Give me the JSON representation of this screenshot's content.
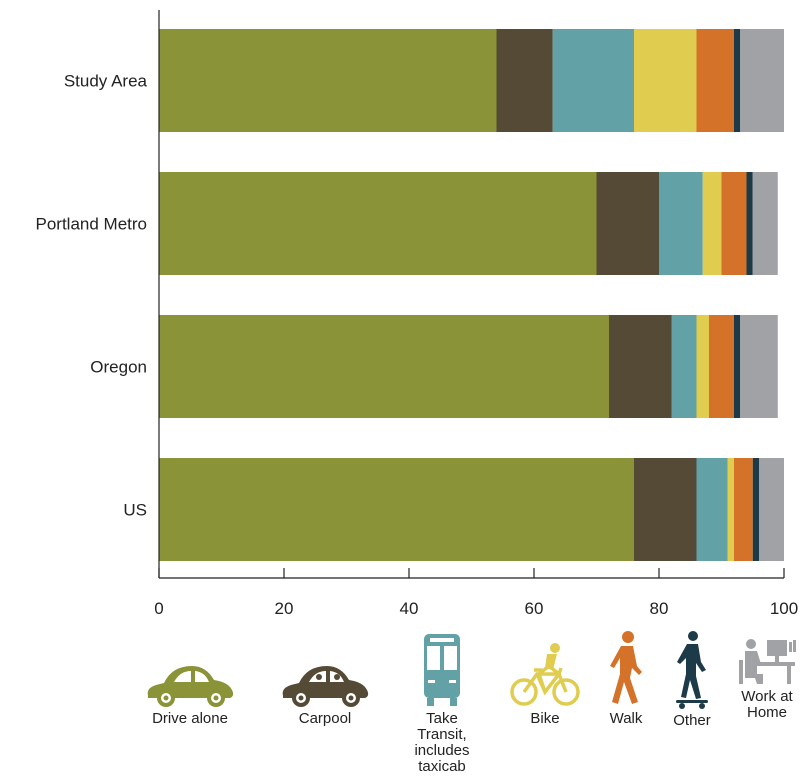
{
  "colors": {
    "drive_alone": "#8b9338",
    "carpool": "#554a36",
    "transit": "#62a1a6",
    "bike": "#e0cc4f",
    "walk": "#d4722a",
    "other": "#1c3a48",
    "work_at_home": "#a1a2a6"
  },
  "chart_data": {
    "type": "bar",
    "orientation": "horizontal",
    "stacked": true,
    "categories": [
      "Study Area",
      "Portland Metro",
      "Oregon",
      "US"
    ],
    "series": [
      {
        "name": "Drive alone",
        "values": [
          54,
          70,
          72,
          76
        ]
      },
      {
        "name": "Carpool",
        "values": [
          9,
          10,
          10,
          10
        ]
      },
      {
        "name": "Take Transit, includes taxicab",
        "values": [
          13,
          7,
          4,
          5
        ]
      },
      {
        "name": "Bike",
        "values": [
          10,
          3,
          2,
          1
        ]
      },
      {
        "name": "Walk",
        "values": [
          6,
          4,
          4,
          3
        ]
      },
      {
        "name": "Other",
        "values": [
          1,
          1,
          1,
          1
        ]
      },
      {
        "name": "Work at Home",
        "values": [
          7,
          4,
          6,
          4
        ]
      }
    ],
    "xlim": [
      0,
      100
    ],
    "xticks": [
      "0",
      "20",
      "40",
      "60",
      "80",
      "100"
    ],
    "title": "",
    "xlabel": "",
    "ylabel": "",
    "grid": false,
    "legend_position": "bottom"
  },
  "legend": [
    {
      "label": "Drive alone",
      "icon": "car-icon"
    },
    {
      "label": "Carpool",
      "icon": "carpool-car-icon"
    },
    {
      "label": "Take\nTransit,\nincludes\ntaxicab",
      "icon": "bus-icon"
    },
    {
      "label": "Bike",
      "icon": "bicycle-icon"
    },
    {
      "label": "Walk",
      "icon": "walking-person-icon"
    },
    {
      "label": "Other",
      "icon": "skateboarder-icon"
    },
    {
      "label": "Work at\nHome",
      "icon": "desk-worker-icon"
    }
  ]
}
